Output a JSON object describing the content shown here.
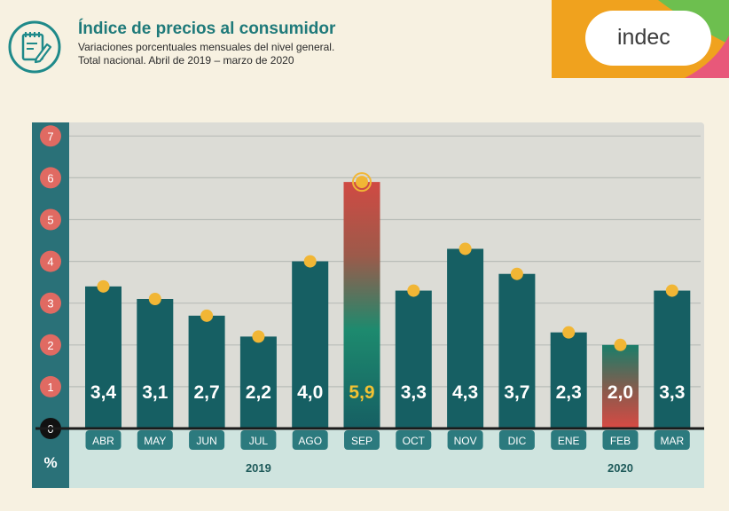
{
  "header": {
    "title": "Índice de precios al consumidor",
    "subtitle_line1": "Variaciones porcentuales mensuales del nivel general.",
    "subtitle_line2": "Total nacional. Abril de 2019 – marzo de 2020",
    "logo_text": "indec",
    "icon": "notepad-pencil-icon"
  },
  "colors": {
    "bar": "#165f63",
    "accent_teal": "#1f8a8a",
    "tick_circle": "#e06a62",
    "dot": "#f1b635",
    "highlight_text": "#f2c233",
    "logo_orange": "#f0a21e",
    "logo_pink": "#e8587a",
    "logo_green": "#6dbf4f"
  },
  "chart_data": {
    "type": "bar",
    "title": "Índice de precios al consumidor",
    "ylabel": "%",
    "ylim": [
      0,
      7
    ],
    "yticks": [
      "0",
      "1",
      "2",
      "3",
      "4",
      "5",
      "6",
      "7"
    ],
    "categories": [
      "ABR",
      "MAY",
      "JUN",
      "JUL",
      "AGO",
      "SEP",
      "OCT",
      "NOV",
      "DIC",
      "ENE",
      "FEB",
      "MAR"
    ],
    "values": [
      3.4,
      3.1,
      2.7,
      2.2,
      4.0,
      5.9,
      3.3,
      4.3,
      3.7,
      2.3,
      2.0,
      3.3
    ],
    "value_labels": [
      "3,4",
      "3,1",
      "2,7",
      "2,2",
      "4,0",
      "5,9",
      "3,3",
      "4,3",
      "3,7",
      "2,3",
      "2,0",
      "3,3"
    ],
    "highlighted": [
      "SEP",
      "FEB"
    ],
    "year_labels": [
      {
        "text": "2019",
        "under": "JUL"
      },
      {
        "text": "2020",
        "under": "FEB"
      }
    ],
    "grid": true
  }
}
